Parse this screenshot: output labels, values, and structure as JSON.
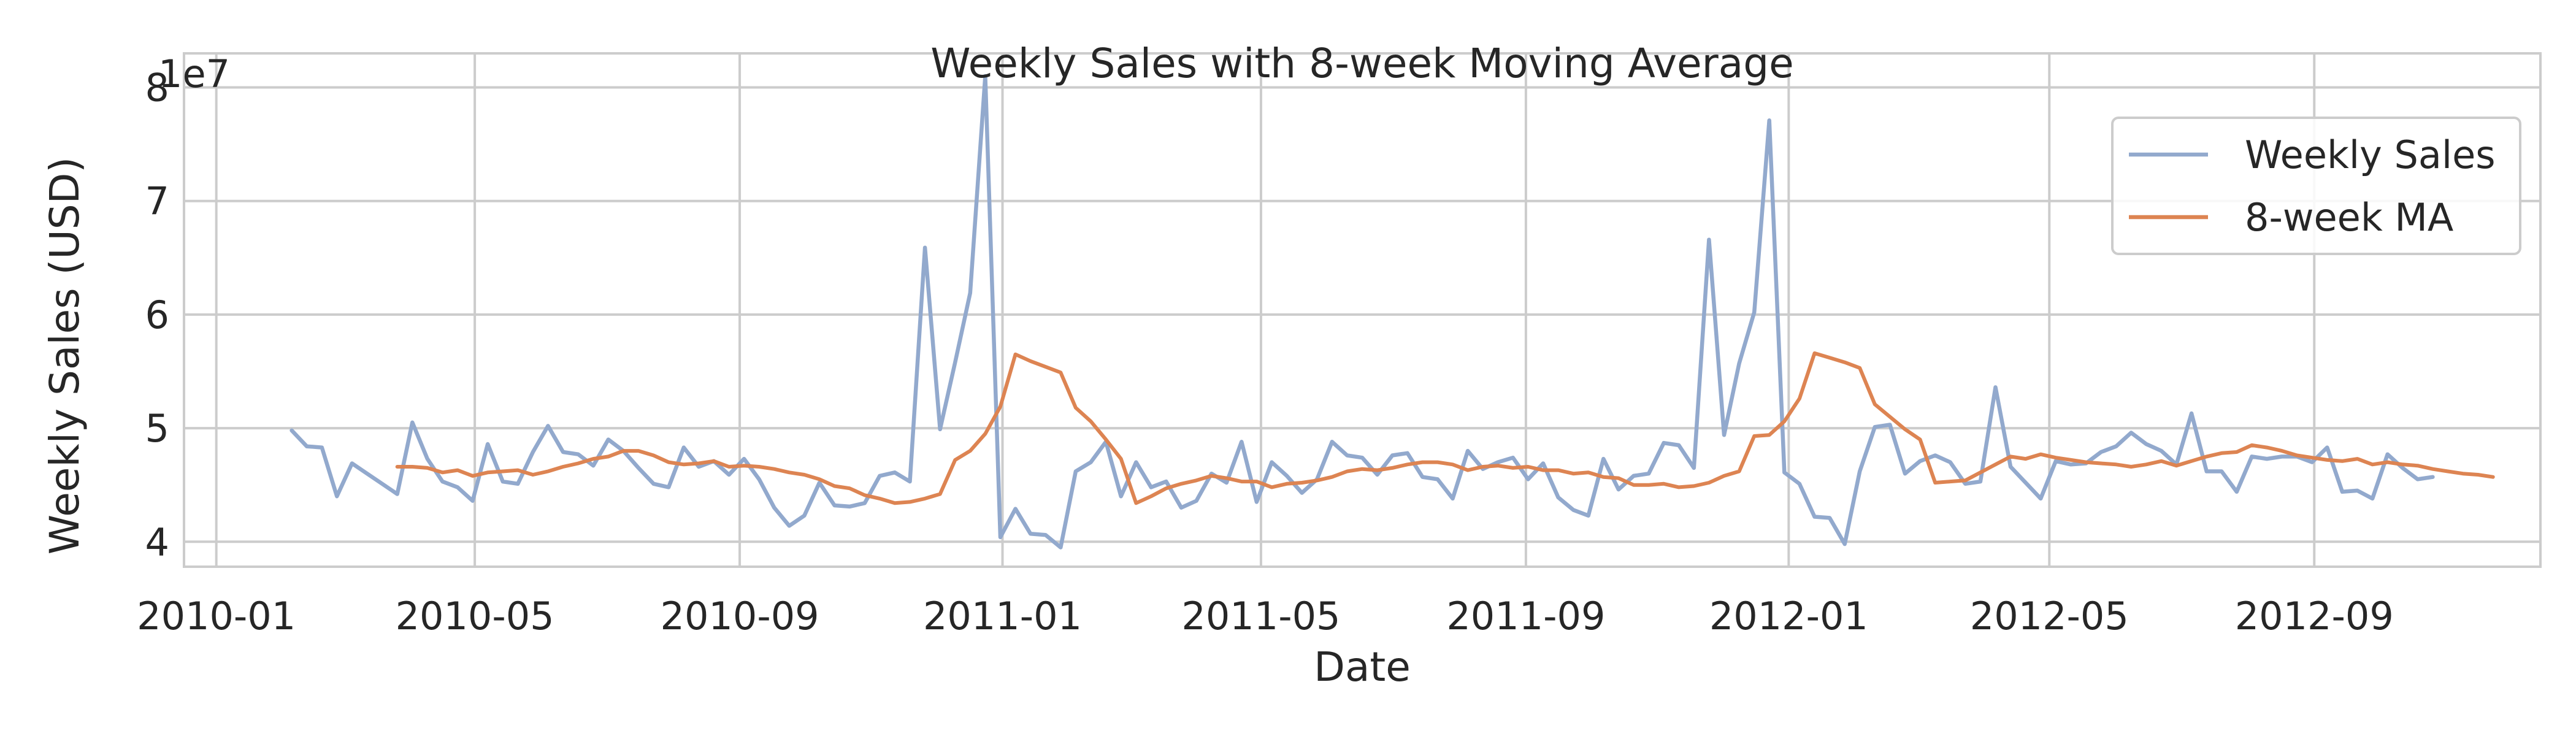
{
  "chart_data": {
    "type": "line",
    "title": "Weekly Sales with 8-week Moving Average",
    "xlabel": "Date",
    "ylabel": "Weekly Sales (USD)",
    "y_scale_label": "1e7",
    "x_range": [
      "2009-12-17",
      "2012-12-15"
    ],
    "x_ticks": [
      "2010-01",
      "2010-05",
      "2010-09",
      "2011-01",
      "2011-05",
      "2011-09",
      "2012-01",
      "2012-05",
      "2012-09"
    ],
    "y_range": [
      3.78,
      8.3
    ],
    "y_ticks": [
      4,
      5,
      6,
      7,
      8
    ],
    "y_unit_note": "values in units of 1e7 USD",
    "grid": true,
    "legend_position": "top-right",
    "series": [
      {
        "name": "Weekly Sales",
        "color": "#92a9cd",
        "start": "2010-02-05",
        "step_days": 7,
        "values": [
          4.98,
          4.84,
          4.83,
          4.4,
          4.69,
          4.6,
          4.51,
          4.42,
          5.05,
          4.73,
          4.53,
          4.48,
          4.36,
          4.86,
          4.53,
          4.51,
          4.79,
          5.02,
          4.79,
          4.77,
          4.67,
          4.9,
          4.8,
          4.65,
          4.51,
          4.48,
          4.83,
          4.66,
          4.71,
          4.59,
          4.73,
          4.55,
          4.3,
          4.14,
          4.23,
          4.52,
          4.32,
          4.31,
          4.34,
          4.58,
          4.61,
          4.53,
          6.59,
          4.99,
          5.58,
          6.19,
          8.1,
          4.04,
          4.29,
          4.07,
          4.06,
          3.95,
          4.62,
          4.7,
          4.88,
          4.4,
          4.7,
          4.48,
          4.53,
          4.3,
          4.36,
          4.6,
          4.52,
          4.88,
          4.35,
          4.7,
          4.58,
          4.43,
          4.55,
          4.88,
          4.76,
          4.74,
          4.59,
          4.76,
          4.78,
          4.57,
          4.55,
          4.38,
          4.8,
          4.64,
          4.7,
          4.74,
          4.55,
          4.69,
          4.39,
          4.28,
          4.23,
          4.73,
          4.46,
          4.58,
          4.6,
          4.87,
          4.85,
          4.65,
          6.66,
          4.94,
          5.57,
          6.02,
          7.71,
          4.61,
          4.51,
          4.22,
          4.21,
          3.98,
          4.62,
          5.01,
          5.03,
          4.6,
          4.71,
          4.76,
          4.7,
          4.51,
          4.53,
          5.36,
          4.66,
          4.52,
          4.38,
          4.71,
          4.68,
          4.69,
          4.79,
          4.84,
          4.96,
          4.86,
          4.8,
          4.68,
          5.13,
          4.62,
          4.62,
          4.44,
          4.75,
          4.73,
          4.75,
          4.75,
          4.7,
          4.83,
          4.44,
          4.45,
          4.38,
          4.77,
          4.65,
          4.55,
          4.57
        ]
      },
      {
        "name": "8-week MA",
        "color": "#dd8452",
        "start": "2010-03-26",
        "step_days": 7,
        "values": [
          4.66,
          4.66,
          4.65,
          4.61,
          4.63,
          4.58,
          4.61,
          4.62,
          4.63,
          4.59,
          4.62,
          4.66,
          4.69,
          4.73,
          4.75,
          4.8,
          4.8,
          4.76,
          4.7,
          4.68,
          4.69,
          4.71,
          4.66,
          4.67,
          4.66,
          4.64,
          4.61,
          4.59,
          4.55,
          4.49,
          4.47,
          4.41,
          4.38,
          4.34,
          4.35,
          4.38,
          4.42,
          4.72,
          4.8,
          4.95,
          5.19,
          5.65,
          5.59,
          5.54,
          5.49,
          5.18,
          5.06,
          4.9,
          4.73,
          4.34,
          4.4,
          4.47,
          4.51,
          4.54,
          4.58,
          4.56,
          4.53,
          4.53,
          4.48,
          4.51,
          4.52,
          4.54,
          4.57,
          4.62,
          4.64,
          4.63,
          4.65,
          4.68,
          4.7,
          4.7,
          4.68,
          4.63,
          4.66,
          4.67,
          4.65,
          4.66,
          4.63,
          4.63,
          4.6,
          4.61,
          4.57,
          4.56,
          4.5,
          4.5,
          4.51,
          4.48,
          4.49,
          4.52,
          4.58,
          4.62,
          4.93,
          4.94,
          5.06,
          5.26,
          5.66,
          5.62,
          5.58,
          5.53,
          5.21,
          5.1,
          4.99,
          4.9,
          4.52,
          4.53,
          4.54,
          4.61,
          4.68,
          4.75,
          4.73,
          4.77,
          4.74,
          4.72,
          4.7,
          4.69,
          4.68,
          4.66,
          4.68,
          4.71,
          4.67,
          4.71,
          4.75,
          4.78,
          4.79,
          4.85,
          4.83,
          4.8,
          4.76,
          4.74,
          4.72,
          4.71,
          4.73,
          4.68,
          4.7,
          4.68,
          4.67,
          4.64,
          4.62,
          4.6,
          4.59,
          4.57
        ]
      }
    ]
  }
}
